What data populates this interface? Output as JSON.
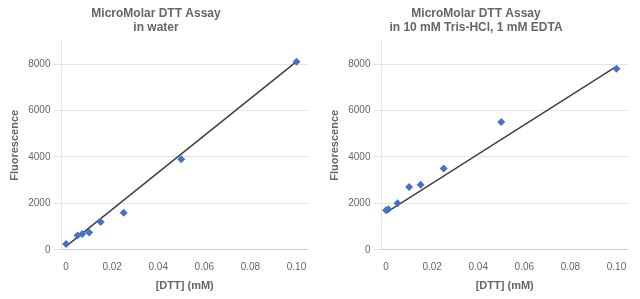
{
  "chart_data": [
    {
      "type": "scatter",
      "title": "MicroMolar DTT Assay\nin water",
      "x_label": "[DTT] (mM)",
      "y_label": "Fluorescence",
      "series": [
        {
          "type": "scatter",
          "color": "#4472c4",
          "marker": "diamond",
          "x": [
            0.0,
            0.005,
            0.007,
            0.01,
            0.015,
            0.025,
            0.05,
            0.1
          ],
          "values": [
            250,
            620,
            680,
            750,
            1200,
            1600,
            3900,
            8100
          ]
        },
        {
          "type": "line",
          "color": "#404040",
          "line_style": "solid",
          "x": [
            0.0,
            0.1
          ],
          "values": [
            150,
            8100
          ]
        }
      ],
      "xlim": [
        -0.002,
        0.105
      ],
      "ylim": [
        0,
        9000
      ],
      "xticks": [
        0,
        0.02,
        0.04,
        0.06,
        0.08,
        {
          "value": 0.1,
          "label": "0.10"
        }
      ],
      "yticks": [
        0,
        2000,
        4000,
        6000,
        8000
      ],
      "grid": "y"
    },
    {
      "type": "scatter",
      "title": "MicroMolar DTT Assay\nin 10 mM Tris-HCl, 1 mM EDTA",
      "x_label": "[DTT] (mM)",
      "y_label": "Fluorescence",
      "series": [
        {
          "type": "scatter",
          "color": "#4472c4",
          "marker": "diamond",
          "x": [
            0.0,
            0.001,
            0.005,
            0.01,
            0.015,
            0.025,
            0.05,
            0.1
          ],
          "values": [
            1700,
            1750,
            2000,
            2700,
            2800,
            3500,
            5500,
            7800
          ]
        },
        {
          "type": "line",
          "color": "#404040",
          "line_style": "solid",
          "x": [
            0.0,
            0.1
          ],
          "values": [
            1600,
            7900
          ]
        }
      ],
      "xlim": [
        -0.002,
        0.105
      ],
      "ylim": [
        0,
        9000
      ],
      "xticks": [
        0,
        0.02,
        0.04,
        0.06,
        0.08,
        {
          "value": 0.1,
          "label": "0.10"
        }
      ],
      "yticks": [
        0,
        2000,
        4000,
        6000,
        8000
      ],
      "grid": "y"
    }
  ]
}
